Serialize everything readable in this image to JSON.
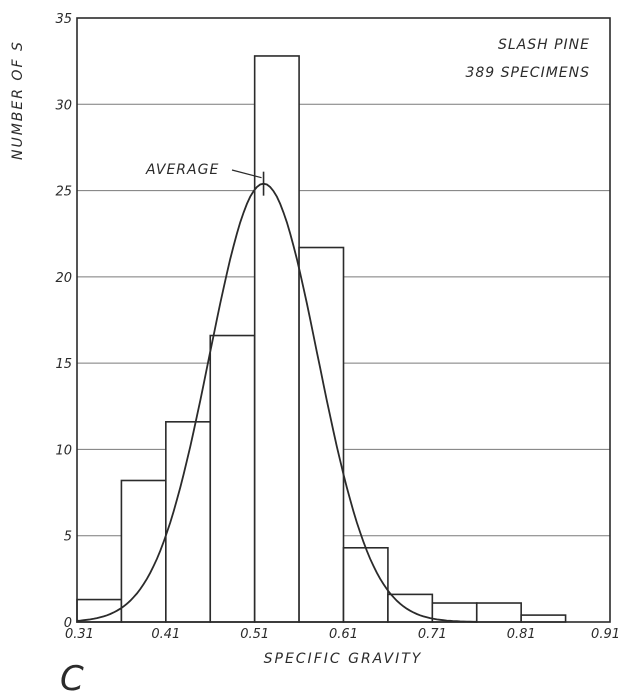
{
  "chart_data": {
    "type": "bar",
    "title": "",
    "xlabel": "SPECIFIC GRAVITY",
    "ylabel": "NUMBER OF S",
    "xlim": [
      0.31,
      0.91
    ],
    "ylim": [
      0,
      35
    ],
    "x_ticks": [
      "0.31",
      "0.41",
      "0.51",
      "0.61",
      "0.71",
      "0.81",
      "0.91"
    ],
    "x_tick_values": [
      0.31,
      0.41,
      0.51,
      0.61,
      0.71,
      0.81,
      0.91
    ],
    "y_ticks": [
      "0",
      "5",
      "10",
      "15",
      "20",
      "25",
      "30",
      "35"
    ],
    "y_tick_values": [
      0,
      5,
      10,
      15,
      20,
      25,
      30,
      35
    ],
    "grid": true,
    "bins": [
      {
        "x0": 0.31,
        "x1": 0.36,
        "value": 1.3
      },
      {
        "x0": 0.36,
        "x1": 0.41,
        "value": 8.2
      },
      {
        "x0": 0.41,
        "x1": 0.46,
        "value": 11.6
      },
      {
        "x0": 0.46,
        "x1": 0.51,
        "value": 16.6
      },
      {
        "x0": 0.51,
        "x1": 0.56,
        "value": 32.8
      },
      {
        "x0": 0.56,
        "x1": 0.61,
        "value": 21.7
      },
      {
        "x0": 0.61,
        "x1": 0.66,
        "value": 4.3
      },
      {
        "x0": 0.66,
        "x1": 0.71,
        "value": 1.6
      },
      {
        "x0": 0.71,
        "x1": 0.76,
        "value": 1.1
      },
      {
        "x0": 0.76,
        "x1": 0.81,
        "value": 1.1
      },
      {
        "x0": 0.81,
        "x1": 0.86,
        "value": 0.4
      }
    ],
    "normal_curve": {
      "mean": 0.52,
      "sd": 0.061,
      "peak": 25.4,
      "x_range": [
        0.31,
        0.76
      ]
    },
    "average": {
      "label": "AVERAGE",
      "x": 0.52
    },
    "legend": {
      "lines": [
        "SLASH PINE",
        "389 SPECIMENS"
      ],
      "placement": "top-right"
    },
    "panel_label": "C"
  }
}
